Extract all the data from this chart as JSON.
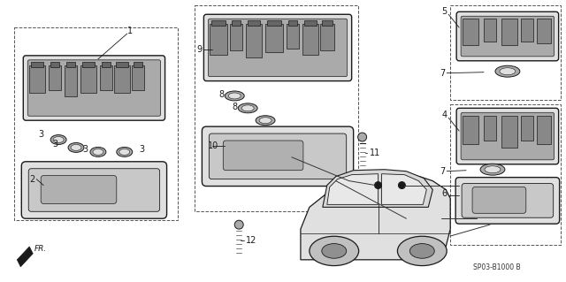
{
  "bg_color": "#ffffff",
  "line_color": "#1a1a1a",
  "fig_width": 6.4,
  "fig_height": 3.19,
  "dpi": 100,
  "watermark_text": "SP03-B1000 B"
}
